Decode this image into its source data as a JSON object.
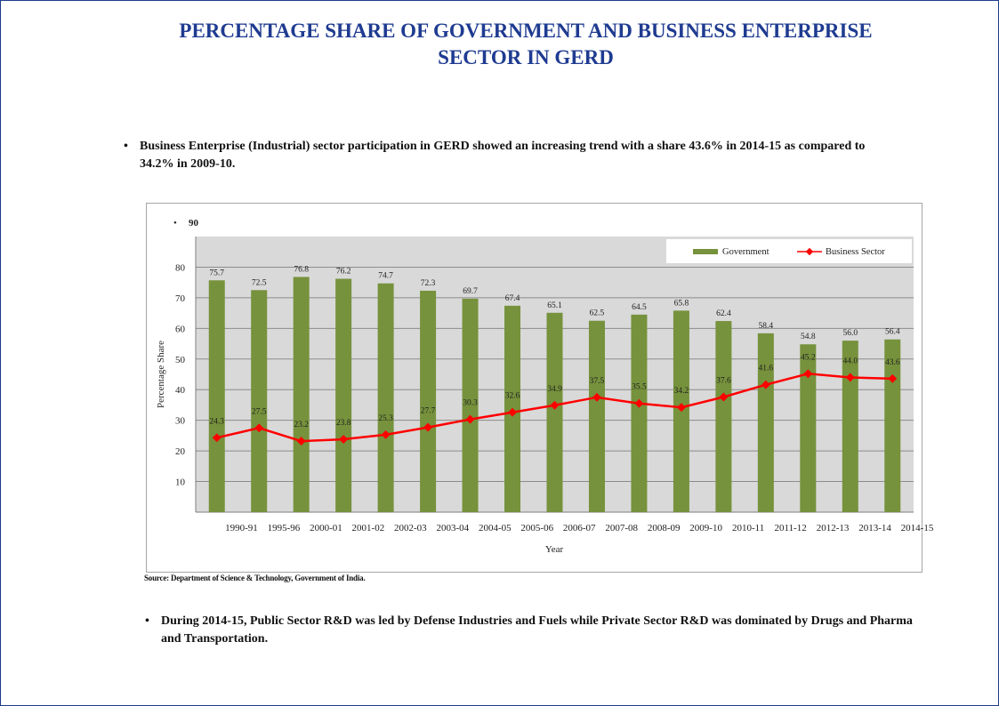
{
  "page": {
    "title_line1": "PERCENTAGE SHARE OF GOVERNMENT AND BUSINESS ENTERPRISE",
    "title_line2": "SECTOR IN GERD",
    "bullet_symbol": "•",
    "bullet1": "Business Enterprise (Industrial)  sector participation  in GERD showed an increasing trend with  a share 43.6% in 2014-15 as compared  to 34.2% in 2009-10.",
    "bullet2": "During 2014-15, Public Sector R&D was led by Defense Industries and Fuels while Private Sector R&D was dominated by Drugs  and Pharma and Transportation.",
    "source": "Source: Department of Science & Technology, Government of India."
  },
  "colors": {
    "title": "#1f3b91",
    "bar": "#76923c",
    "line": "#ff0000",
    "plot_bg": "#d9d9d9",
    "border": "#1f3d8f"
  },
  "chart_data": {
    "type": "bar",
    "title": "",
    "xlabel": "Year",
    "ylabel": "Percentage Share",
    "ylim": [
      0,
      90
    ],
    "yticks": [
      "10",
      "20",
      "30",
      "40",
      "50",
      "60",
      "70",
      "80"
    ],
    "top_tick_label": "90",
    "top_tick_bullet": "•",
    "grid": true,
    "legend_position": "top-right",
    "categories_drawn": [
      "1990-91",
      "1995-96",
      "2000-01",
      "2001-02",
      "2002-03",
      "2003-04",
      "2004-05",
      "2005-06",
      "2006-07",
      "2007-08",
      "2008-09",
      "2009-10",
      "2010-11",
      "2011-12",
      "2012-13",
      "2013-14",
      "2014-15"
    ],
    "series": [
      {
        "name": "Government",
        "type": "bar",
        "values": [
          75.7,
          72.5,
          76.8,
          76.2,
          74.7,
          72.3,
          69.7,
          67.4,
          65.1,
          62.5,
          64.5,
          65.8,
          62.4,
          58.4,
          54.8,
          56.0,
          56.4
        ],
        "labels": [
          "75.7",
          "72.5",
          "76.8",
          "76.2",
          "74.7",
          "72.3",
          "69.7",
          "67.4",
          "65.1",
          "62.5",
          "64.5",
          "65.8",
          "62.4",
          "58.4",
          "54.8",
          "56.0",
          "56.4"
        ]
      },
      {
        "name": "Business Sector",
        "type": "line",
        "values": [
          24.3,
          27.5,
          23.2,
          23.8,
          25.3,
          27.7,
          30.3,
          32.6,
          34.9,
          37.5,
          35.5,
          34.2,
          37.6,
          41.6,
          45.2,
          44.0,
          43.6
        ],
        "labels": [
          "24.3",
          "27.5",
          "23.2",
          "23.8",
          "25.3",
          "27.7",
          "30.3",
          "32.6",
          "34.9",
          "37.5",
          "35.5",
          "34.2",
          "37.6",
          "41.6",
          "45.2",
          "44.0",
          "43.6"
        ]
      }
    ]
  }
}
